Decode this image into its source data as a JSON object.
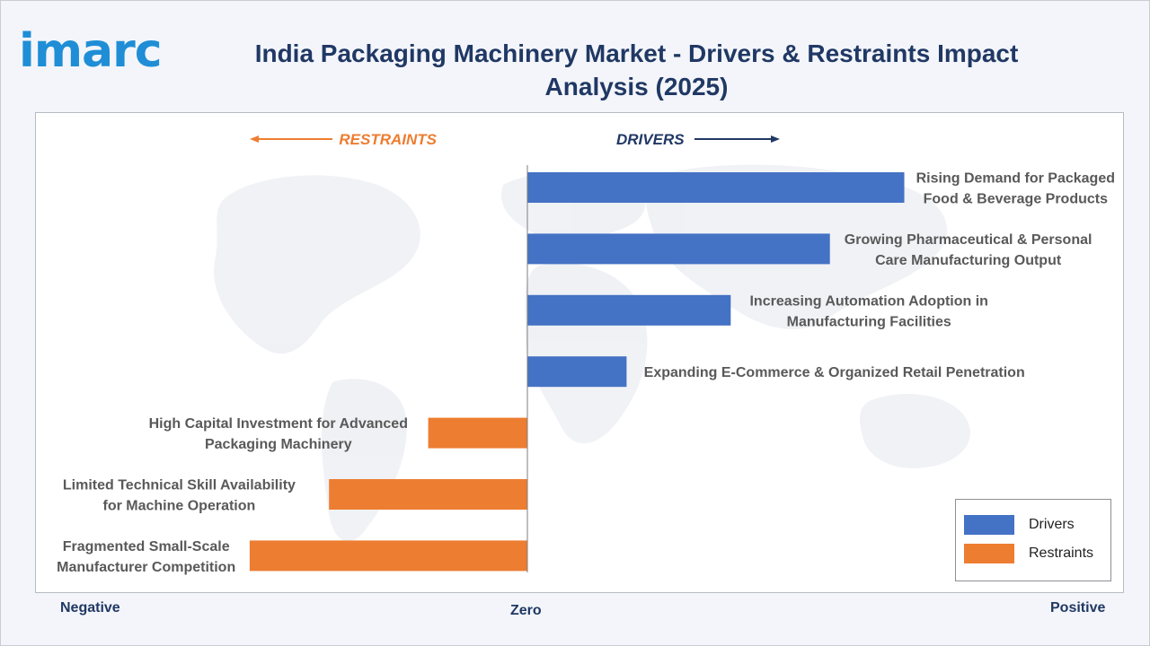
{
  "logo": {
    "text": "imarc"
  },
  "title": "India Packaging Machinery Market - Drivers & Restraints Impact Analysis (2025)",
  "directions": {
    "restraints": "RESTRAINTS",
    "drivers": "DRIVERS"
  },
  "axis": {
    "negative": "Negative",
    "zero": "Zero",
    "positive": "Positive"
  },
  "legend": [
    {
      "label": "Drivers",
      "color": "#4472c4"
    },
    {
      "label": "Restraints",
      "color": "#ed7d31"
    }
  ],
  "colors": {
    "drivers": "#4472c4",
    "restraints": "#ed7d31",
    "text": "#595959",
    "title": "#203864"
  },
  "chart_data": {
    "type": "bar",
    "orientation": "horizontal",
    "title": "India Packaging Machinery Market - Drivers & Restraints Impact Analysis (2025)",
    "xlim": [
      -1,
      1
    ],
    "grid": false,
    "legend_position": "bottom-right",
    "categories": [
      "Rising Demand for Packaged\nFood & Beverage Products",
      "Growing Pharmaceutical & Personal\nCare Manufacturing Output",
      "Increasing Automation Adoption in\nManufacturing Facilities",
      "Expanding E-Commerce & Organized Retail Penetration",
      "High Capital Investment for Advanced\nPackaging Machinery",
      "Limited Technical Skill Availability\nfor Machine Operation",
      "Fragmented Small-Scale\nManufacturer Competition"
    ],
    "series": [
      {
        "name": "Drivers",
        "values": [
          0.76,
          0.61,
          0.41,
          0.2,
          null,
          null,
          null
        ]
      },
      {
        "name": "Restraints",
        "values": [
          null,
          null,
          null,
          null,
          -0.2,
          -0.4,
          -0.56
        ]
      }
    ]
  }
}
